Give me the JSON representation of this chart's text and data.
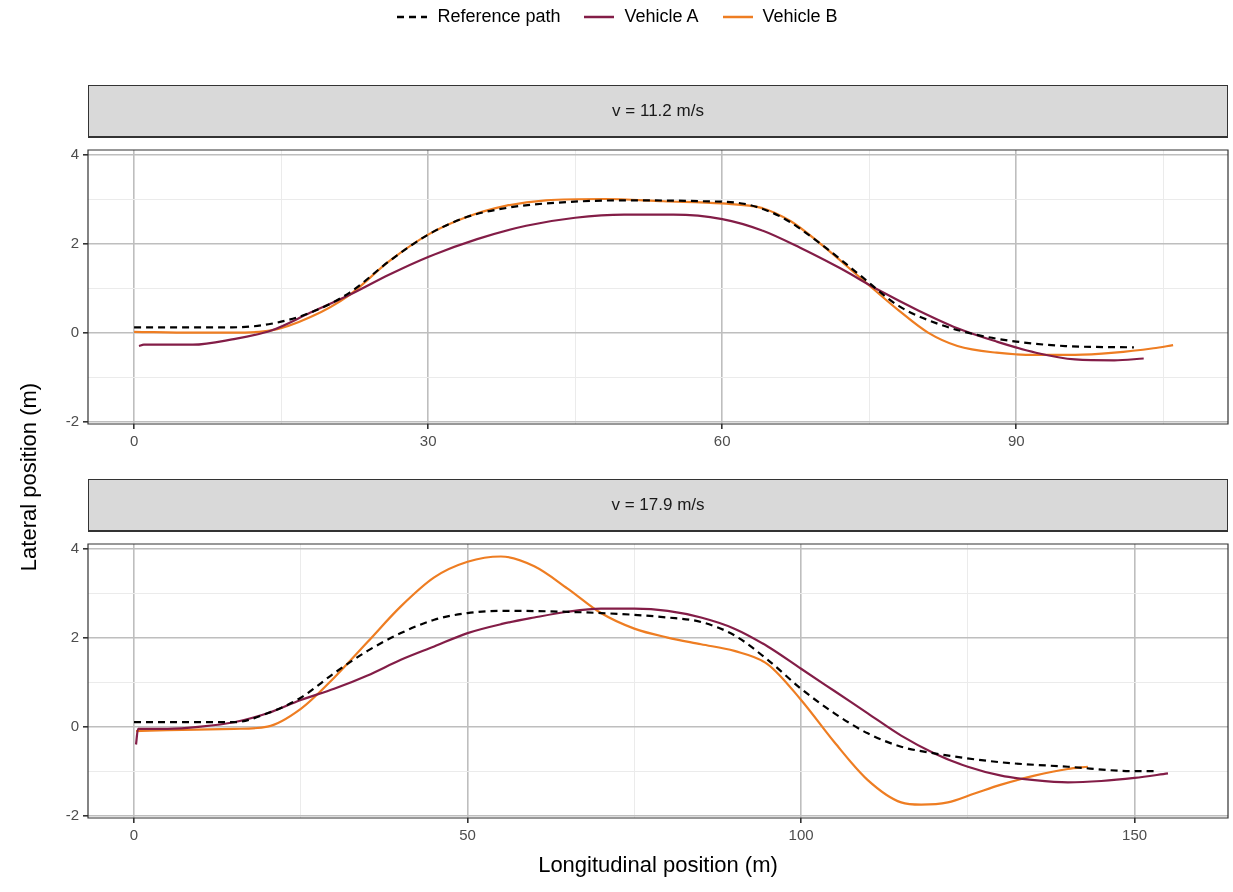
{
  "chart_data": [
    {
      "type": "line",
      "title": "v = 11.2 m/s",
      "ylabel": "Lateral position (m)",
      "xlim": [
        -4.7,
        111.6
      ],
      "xticks": [
        0,
        {
          "value": 15,
          "label": null
        },
        30,
        {
          "value": 45,
          "label": null
        },
        60,
        {
          "value": 75,
          "label": null
        },
        90,
        {
          "value": 105,
          "label": null
        }
      ],
      "ylim": [
        -2.05,
        4.1
      ],
      "yticks": [
        -2,
        {
          "value": -1,
          "label": null
        },
        0,
        {
          "value": 1,
          "label": null
        },
        2,
        {
          "value": 3,
          "label": null
        },
        4
      ],
      "grid": true,
      "legend": "top",
      "marker": "none",
      "series": [
        {
          "name": "Reference path",
          "color": "#000000",
          "line_style": "dashed",
          "x": [
            0,
            10,
            14,
            18,
            22,
            26,
            30,
            34,
            38,
            42,
            50,
            58,
            62,
            66,
            70,
            74,
            78,
            82,
            86,
            90,
            95,
            102
          ],
          "values": [
            0.12,
            0.12,
            0.2,
            0.45,
            0.9,
            1.6,
            2.2,
            2.6,
            2.8,
            2.9,
            2.97,
            2.95,
            2.9,
            2.6,
            2.0,
            1.3,
            0.6,
            0.2,
            -0.05,
            -0.2,
            -0.3,
            -0.33
          ]
        },
        {
          "name": "Vehicle A",
          "color": "#831d47",
          "line_style": "solid",
          "x": [
            0.5,
            1,
            6,
            10,
            14,
            18,
            22,
            26,
            30,
            35,
            40,
            45,
            50,
            55,
            60,
            64,
            68,
            72,
            76,
            80,
            84,
            88,
            92,
            96,
            100,
            103
          ],
          "values": [
            -0.3,
            -0.27,
            -0.27,
            -0.15,
            0.05,
            0.45,
            0.85,
            1.3,
            1.7,
            2.1,
            2.4,
            2.58,
            2.65,
            2.65,
            2.55,
            2.3,
            1.9,
            1.45,
            0.95,
            0.5,
            0.1,
            -0.2,
            -0.45,
            -0.6,
            -0.62,
            -0.58
          ]
        },
        {
          "name": "Vehicle B",
          "color": "#ee7d22",
          "line_style": "solid",
          "x": [
            0,
            6,
            10,
            14,
            18,
            22,
            26,
            30,
            34,
            38,
            42,
            48,
            54,
            60,
            64,
            67,
            70,
            74,
            78,
            81,
            84,
            88,
            92,
            96,
            100,
            104,
            106
          ],
          "values": [
            0.02,
            0,
            0,
            0.05,
            0.35,
            0.85,
            1.6,
            2.2,
            2.6,
            2.85,
            2.97,
            3.0,
            2.95,
            2.9,
            2.8,
            2.5,
            2.0,
            1.25,
            0.5,
            0,
            -0.3,
            -0.45,
            -0.5,
            -0.5,
            -0.45,
            -0.35,
            -0.28
          ]
        }
      ]
    },
    {
      "type": "line",
      "title": "v = 17.9 m/s",
      "xlabel": "Longitudinal position (m)",
      "xlim": [
        -6.9,
        164
      ],
      "xticks": [
        0,
        {
          "value": 25,
          "label": null
        },
        50,
        {
          "value": 75,
          "label": null
        },
        100,
        {
          "value": 125,
          "label": null
        },
        150
      ],
      "ylim": [
        -2.05,
        4.1
      ],
      "yticks": [
        -2,
        {
          "value": -1,
          "label": null
        },
        0,
        {
          "value": 1,
          "label": null
        },
        2,
        {
          "value": 3,
          "label": null
        },
        4
      ],
      "grid": true,
      "marker": "none",
      "series": [
        {
          "color": "#000000",
          "line_style": "dashed",
          "x": [
            0,
            15,
            20,
            25,
            30,
            35,
            40,
            45,
            50,
            55,
            70,
            80,
            85,
            90,
            95,
            100,
            105,
            110,
            115,
            120,
            130,
            140,
            150,
            153
          ],
          "values": [
            0.1,
            0.1,
            0.3,
            0.65,
            1.2,
            1.7,
            2.1,
            2.4,
            2.55,
            2.6,
            2.55,
            2.45,
            2.35,
            2.05,
            1.5,
            0.85,
            0.3,
            -0.15,
            -0.45,
            -0.6,
            -0.8,
            -0.9,
            -1.0,
            -1.0
          ]
        },
        {
          "color": "#831d47",
          "line_style": "solid",
          "x": [
            0.3,
            0.6,
            5,
            10,
            15,
            20,
            25,
            30,
            35,
            40,
            45,
            50,
            55,
            60,
            65,
            70,
            75,
            80,
            85,
            90,
            95,
            100,
            105,
            110,
            115,
            120,
            125,
            130,
            135,
            140,
            145,
            150,
            155
          ],
          "values": [
            -0.4,
            -0.05,
            -0.05,
            0,
            0.1,
            0.3,
            0.6,
            0.85,
            1.15,
            1.5,
            1.8,
            2.1,
            2.3,
            2.45,
            2.58,
            2.65,
            2.65,
            2.6,
            2.45,
            2.2,
            1.8,
            1.3,
            0.8,
            0.3,
            -0.2,
            -0.6,
            -0.9,
            -1.1,
            -1.2,
            -1.25,
            -1.22,
            -1.15,
            -1.05
          ]
        },
        {
          "color": "#ee7d22",
          "line_style": "solid",
          "x": [
            0.3,
            5,
            15,
            20,
            25,
            30,
            35,
            40,
            45,
            50,
            55,
            60,
            65,
            70,
            75,
            80,
            85,
            90,
            95,
            100,
            105,
            110,
            115,
            118,
            122,
            126,
            130,
            135,
            140,
            143
          ],
          "values": [
            -0.1,
            -0.08,
            -0.05,
            0,
            0.4,
            1.1,
            1.9,
            2.7,
            3.35,
            3.7,
            3.82,
            3.6,
            3.1,
            2.55,
            2.2,
            2.0,
            1.85,
            1.7,
            1.4,
            0.6,
            -0.35,
            -1.2,
            -1.7,
            -1.75,
            -1.7,
            -1.5,
            -1.3,
            -1.1,
            -0.95,
            -0.9
          ]
        }
      ]
    }
  ]
}
